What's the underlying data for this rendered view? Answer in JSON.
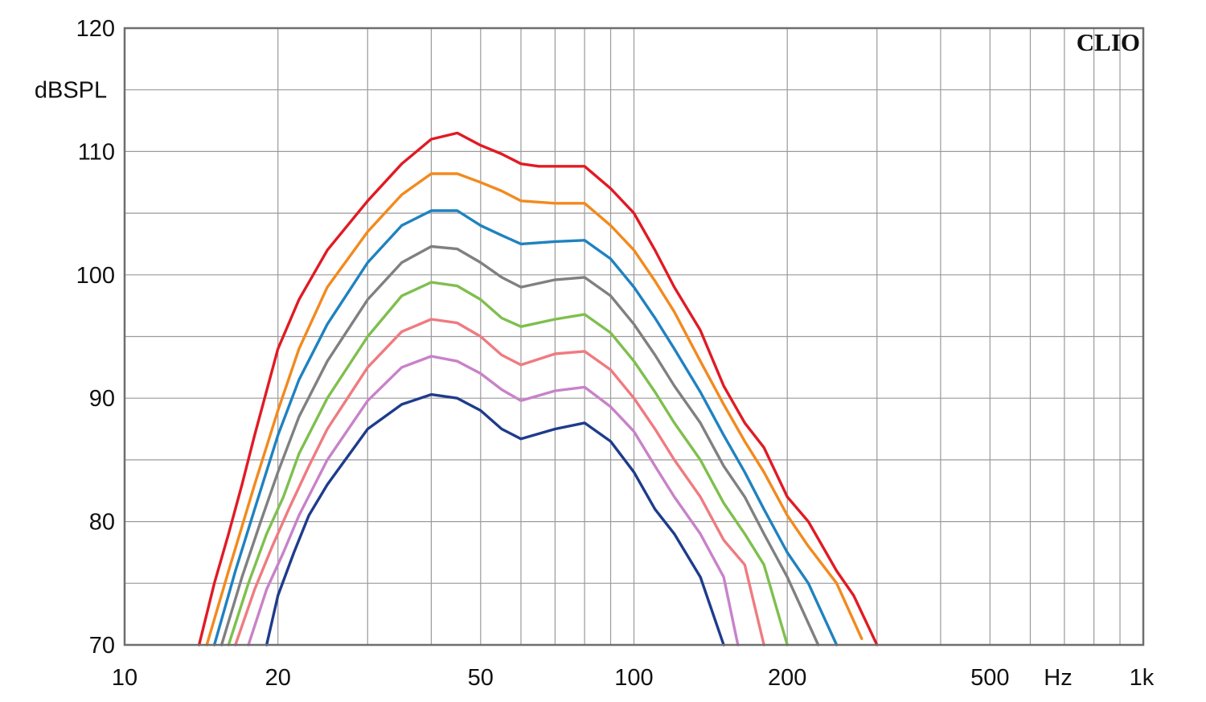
{
  "chart_data": {
    "type": "line",
    "xscale": "log",
    "xlim": [
      10,
      1000
    ],
    "ylim": [
      70,
      120
    ],
    "grid": true,
    "ylabel": "dBSPL",
    "xunit": "Hz",
    "brand": "CLIO",
    "y_ticks": [
      {
        "value": 70,
        "label": "70"
      },
      {
        "value": 80,
        "label": "80"
      },
      {
        "value": 90,
        "label": "90"
      },
      {
        "value": 100,
        "label": "100"
      },
      {
        "value": 110,
        "label": "110"
      },
      {
        "value": 120,
        "label": "120"
      }
    ],
    "x_ticks": [
      {
        "value": 10,
        "label": "10"
      },
      {
        "value": 20,
        "label": "20"
      },
      {
        "value": 50,
        "label": "50"
      },
      {
        "value": 100,
        "label": "100"
      },
      {
        "value": 200,
        "label": "200"
      },
      {
        "value": 500,
        "label": "500"
      },
      {
        "value": 1000,
        "label": "1k"
      }
    ],
    "series": [
      {
        "color": "#e01b24",
        "points": [
          [
            14,
            70
          ],
          [
            15,
            75
          ],
          [
            16,
            79
          ],
          [
            17,
            83
          ],
          [
            18,
            87
          ],
          [
            20,
            94
          ],
          [
            22,
            98
          ],
          [
            25,
            102
          ],
          [
            30,
            106
          ],
          [
            35,
            109
          ],
          [
            40,
            111
          ],
          [
            45,
            111.5
          ],
          [
            50,
            110.5
          ],
          [
            55,
            109.8
          ],
          [
            60,
            109
          ],
          [
            65,
            108.8
          ],
          [
            70,
            108.8
          ],
          [
            80,
            108.8
          ],
          [
            90,
            107
          ],
          [
            100,
            105
          ],
          [
            110,
            102
          ],
          [
            120,
            99
          ],
          [
            135,
            95.5
          ],
          [
            150,
            91
          ],
          [
            165,
            88
          ],
          [
            180,
            86
          ],
          [
            200,
            82
          ],
          [
            220,
            80
          ],
          [
            250,
            76
          ],
          [
            270,
            74
          ],
          [
            300,
            70
          ]
        ]
      },
      {
        "color": "#f28a1e",
        "points": [
          [
            14.5,
            70
          ],
          [
            16,
            76
          ],
          [
            18,
            83
          ],
          [
            20,
            89
          ],
          [
            22,
            94
          ],
          [
            25,
            99
          ],
          [
            30,
            103.5
          ],
          [
            35,
            106.5
          ],
          [
            40,
            108.2
          ],
          [
            45,
            108.2
          ],
          [
            50,
            107.5
          ],
          [
            55,
            106.8
          ],
          [
            60,
            106
          ],
          [
            70,
            105.8
          ],
          [
            80,
            105.8
          ],
          [
            90,
            104
          ],
          [
            100,
            102
          ],
          [
            110,
            99.5
          ],
          [
            120,
            97
          ],
          [
            135,
            93
          ],
          [
            150,
            89.5
          ],
          [
            165,
            86.5
          ],
          [
            180,
            84
          ],
          [
            200,
            80.5
          ],
          [
            220,
            78
          ],
          [
            250,
            75
          ],
          [
            280,
            70.5
          ]
        ]
      },
      {
        "color": "#1f82c0",
        "points": [
          [
            15,
            70
          ],
          [
            16.5,
            76
          ],
          [
            18,
            81
          ],
          [
            20,
            87
          ],
          [
            22,
            91.5
          ],
          [
            25,
            96
          ],
          [
            30,
            101
          ],
          [
            35,
            104
          ],
          [
            40,
            105.2
          ],
          [
            45,
            105.2
          ],
          [
            50,
            104
          ],
          [
            55,
            103.2
          ],
          [
            60,
            102.5
          ],
          [
            70,
            102.7
          ],
          [
            80,
            102.8
          ],
          [
            90,
            101.3
          ],
          [
            100,
            99
          ],
          [
            110,
            96.5
          ],
          [
            120,
            94
          ],
          [
            135,
            90.5
          ],
          [
            150,
            87
          ],
          [
            165,
            84
          ],
          [
            180,
            81
          ],
          [
            200,
            77.5
          ],
          [
            220,
            75
          ],
          [
            250,
            70
          ]
        ]
      },
      {
        "color": "#808080",
        "points": [
          [
            15.5,
            70
          ],
          [
            17,
            75.5
          ],
          [
            18.5,
            80
          ],
          [
            20,
            84
          ],
          [
            22,
            88.5
          ],
          [
            25,
            93
          ],
          [
            30,
            98
          ],
          [
            35,
            101
          ],
          [
            40,
            102.3
          ],
          [
            45,
            102.1
          ],
          [
            50,
            101
          ],
          [
            55,
            99.8
          ],
          [
            60,
            99
          ],
          [
            70,
            99.6
          ],
          [
            80,
            99.8
          ],
          [
            90,
            98.3
          ],
          [
            100,
            96
          ],
          [
            110,
            93.5
          ],
          [
            120,
            91
          ],
          [
            135,
            88
          ],
          [
            150,
            84.5
          ],
          [
            165,
            82
          ],
          [
            180,
            79
          ],
          [
            200,
            75.5
          ],
          [
            230,
            70
          ]
        ]
      },
      {
        "color": "#7fbf4e",
        "points": [
          [
            16,
            70
          ],
          [
            17.5,
            75
          ],
          [
            19,
            79
          ],
          [
            20.5,
            82
          ],
          [
            22,
            85.5
          ],
          [
            25,
            90
          ],
          [
            30,
            95
          ],
          [
            35,
            98.3
          ],
          [
            40,
            99.4
          ],
          [
            45,
            99.1
          ],
          [
            50,
            98
          ],
          [
            55,
            96.5
          ],
          [
            60,
            95.8
          ],
          [
            70,
            96.4
          ],
          [
            80,
            96.8
          ],
          [
            90,
            95.3
          ],
          [
            100,
            93
          ],
          [
            110,
            90.5
          ],
          [
            120,
            88
          ],
          [
            135,
            85
          ],
          [
            150,
            81.5
          ],
          [
            165,
            79
          ],
          [
            180,
            76.5
          ],
          [
            200,
            70
          ]
        ]
      },
      {
        "color": "#ef7b80",
        "points": [
          [
            16.5,
            70
          ],
          [
            18,
            74.5
          ],
          [
            19.5,
            78
          ],
          [
            21,
            81
          ],
          [
            23,
            84.5
          ],
          [
            25,
            87.5
          ],
          [
            30,
            92.5
          ],
          [
            35,
            95.4
          ],
          [
            40,
            96.4
          ],
          [
            45,
            96.1
          ],
          [
            50,
            95
          ],
          [
            55,
            93.5
          ],
          [
            60,
            92.7
          ],
          [
            70,
            93.6
          ],
          [
            80,
            93.8
          ],
          [
            90,
            92.3
          ],
          [
            100,
            90
          ],
          [
            110,
            87.5
          ],
          [
            120,
            85
          ],
          [
            135,
            82
          ],
          [
            150,
            78.5
          ],
          [
            165,
            76.5
          ],
          [
            180,
            70
          ]
        ]
      },
      {
        "color": "#c882c8",
        "points": [
          [
            17.5,
            70
          ],
          [
            19,
            74.5
          ],
          [
            20.5,
            77.5
          ],
          [
            22,
            80.5
          ],
          [
            25,
            85
          ],
          [
            30,
            89.8
          ],
          [
            35,
            92.5
          ],
          [
            40,
            93.4
          ],
          [
            45,
            93
          ],
          [
            50,
            92
          ],
          [
            55,
            90.7
          ],
          [
            60,
            89.8
          ],
          [
            70,
            90.6
          ],
          [
            80,
            90.9
          ],
          [
            90,
            89.3
          ],
          [
            100,
            87.3
          ],
          [
            110,
            84.5
          ],
          [
            120,
            82
          ],
          [
            135,
            79
          ],
          [
            150,
            75.5
          ],
          [
            160,
            70
          ]
        ]
      },
      {
        "color": "#1e3c8c",
        "points": [
          [
            19,
            70
          ],
          [
            20,
            74
          ],
          [
            21.5,
            77.5
          ],
          [
            23,
            80.5
          ],
          [
            25,
            83
          ],
          [
            30,
            87.5
          ],
          [
            35,
            89.5
          ],
          [
            40,
            90.3
          ],
          [
            45,
            90
          ],
          [
            50,
            89
          ],
          [
            55,
            87.5
          ],
          [
            60,
            86.7
          ],
          [
            70,
            87.5
          ],
          [
            80,
            88
          ],
          [
            90,
            86.5
          ],
          [
            100,
            84
          ],
          [
            110,
            81
          ],
          [
            120,
            79
          ],
          [
            135,
            75.5
          ],
          [
            150,
            70
          ]
        ]
      }
    ]
  }
}
